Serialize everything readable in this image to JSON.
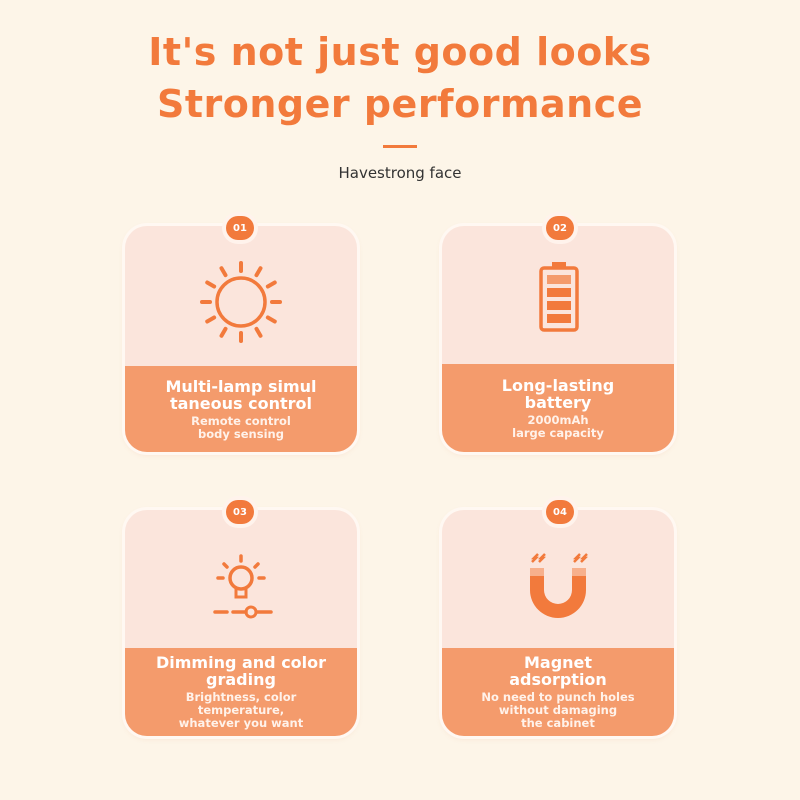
{
  "header": {
    "line1": "It's not just good looks",
    "line2": "Stronger performance",
    "subtitle": "Havestrong face"
  },
  "colors": {
    "accent": "#f27a3c",
    "card": "#fbe5dc",
    "band": "#f49b6c",
    "background": "#fdf5e8"
  },
  "features": [
    {
      "number": "01",
      "icon": "sun-icon",
      "title": "Multi-lamp simul taneous control",
      "desc": [
        "Remote control",
        "body sensing"
      ]
    },
    {
      "number": "02",
      "icon": "battery-icon",
      "title": "Long-lasting battery",
      "desc": [
        "2000mAh",
        "large capacity"
      ]
    },
    {
      "number": "03",
      "icon": "dimmer-bulb-icon",
      "title": "Dimming and color grading",
      "desc": [
        "Brightness, color",
        "temperature,",
        "whatever you want"
      ]
    },
    {
      "number": "04",
      "icon": "magnet-icon",
      "title": "Magnet adsorption",
      "desc": [
        "No need to punch holes",
        "without damaging",
        "the cabinet"
      ]
    }
  ]
}
